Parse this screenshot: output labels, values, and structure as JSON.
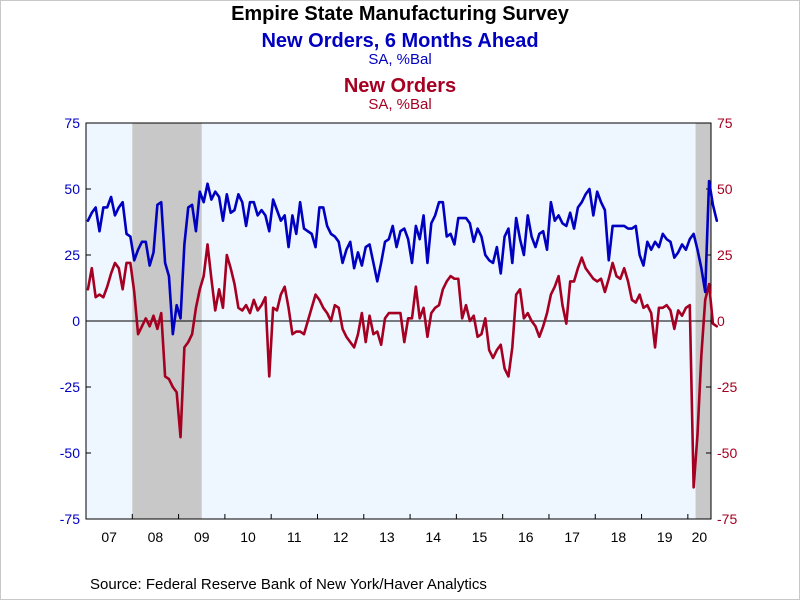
{
  "colors": {
    "series_1": "#0000c0",
    "series_2": "#a50021",
    "plot_background": "#eef6ff",
    "recession_shade": "#c8c8c8"
  },
  "chart_data": {
    "type": "line",
    "title": "Empire State Manufacturing Survey",
    "source": "Source:  Federal Reserve Bank of New York/Haver Analytics",
    "x_start": "2007-01",
    "x_range": [
      "2007-01",
      "2020-06"
    ],
    "x_tick_labels": [
      "07",
      "08",
      "09",
      "10",
      "11",
      "12",
      "13",
      "14",
      "15",
      "16",
      "17",
      "18",
      "19",
      "20"
    ],
    "ylim": [
      -75,
      75
    ],
    "y_ticks": [
      75,
      50,
      25,
      0,
      -25,
      -50,
      -75
    ],
    "y_tick_labels": [
      "75",
      "50",
      "25",
      "0",
      "-25",
      "-50",
      "-75"
    ],
    "shaded_periods": [
      {
        "start": "2008-01",
        "end": "2009-06"
      },
      {
        "start": "2020-03",
        "end": "2020-06"
      }
    ],
    "series": [
      {
        "name": "New Orders, 6 Months Ahead",
        "unit_label": "SA, %Bal",
        "axis": "left",
        "values": [
          38,
          41,
          43,
          34,
          43,
          43,
          47,
          40,
          43,
          45,
          33,
          32,
          23,
          27,
          30,
          30,
          21,
          26,
          44,
          45,
          22,
          17,
          -5,
          6,
          1,
          29,
          43,
          44,
          34,
          49,
          45,
          52,
          46,
          49,
          47,
          38,
          48,
          41,
          42,
          48,
          45,
          36,
          45,
          45,
          40,
          42,
          40,
          34,
          46,
          42,
          38,
          40,
          28,
          40,
          33,
          45,
          35,
          34,
          33,
          28,
          43,
          43,
          36,
          33,
          32,
          30,
          22,
          27,
          30,
          20,
          26,
          21,
          28,
          29,
          22,
          15,
          22,
          30,
          31,
          36,
          28,
          34,
          35,
          31,
          22,
          36,
          31,
          40,
          22,
          37,
          40,
          45,
          45,
          32,
          33,
          29,
          39,
          39,
          39,
          37,
          30,
          35,
          32,
          25,
          23,
          22,
          28,
          18,
          32,
          35,
          22,
          39,
          31,
          25,
          40,
          32,
          28,
          33,
          34,
          27,
          45,
          38,
          40,
          37,
          36,
          41,
          35,
          43,
          45,
          48,
          50,
          40,
          49,
          45,
          42,
          23,
          36,
          36,
          36,
          36,
          35,
          35,
          36,
          25,
          21,
          30,
          27,
          30,
          28,
          33,
          31,
          30,
          24,
          26,
          29,
          27,
          31,
          33,
          27,
          20,
          11,
          53,
          44,
          38
        ]
      },
      {
        "name": "New Orders",
        "unit_label": "SA, %Bal",
        "axis": "right",
        "values": [
          12,
          20,
          9,
          10,
          9,
          13,
          18,
          22,
          20,
          12,
          22,
          22,
          11,
          -5,
          -2,
          1,
          -2,
          2,
          -3,
          3,
          -21,
          -22,
          -25,
          -27,
          -44,
          -10,
          -8,
          -5,
          5,
          12,
          17,
          29,
          16,
          4,
          12,
          5,
          25,
          20,
          14,
          5,
          4,
          6,
          3,
          8,
          4,
          6,
          9,
          -21,
          5,
          4,
          10,
          13,
          5,
          -5,
          -4,
          -4,
          -5,
          0,
          5,
          10,
          8,
          5,
          3,
          0,
          6,
          5,
          -3,
          -6,
          -8,
          -10,
          -5,
          3,
          -8,
          2,
          -5,
          -4,
          -9,
          1,
          3,
          3,
          3,
          3,
          -8,
          1,
          1,
          13,
          1,
          5,
          -6,
          3,
          5,
          6,
          12,
          15,
          17,
          16,
          16,
          1,
          6,
          0,
          2,
          -6,
          -5,
          1,
          -11,
          -14,
          -11,
          -9,
          -18,
          -21,
          -10,
          10,
          12,
          1,
          3,
          0,
          -2,
          -6,
          -2,
          3,
          10,
          13,
          17,
          6,
          -1,
          15,
          15,
          20,
          24,
          20,
          18,
          16,
          15,
          16,
          11,
          16,
          22,
          17,
          16,
          20,
          15,
          8,
          7,
          10,
          5,
          6,
          3,
          -10,
          5,
          5,
          6,
          4,
          -3,
          4,
          2,
          5,
          6,
          -63,
          -43,
          -13,
          8,
          14,
          -1,
          -2
        ]
      }
    ],
    "legend": "none (series names shown as stacked title lines)",
    "grid": false
  }
}
